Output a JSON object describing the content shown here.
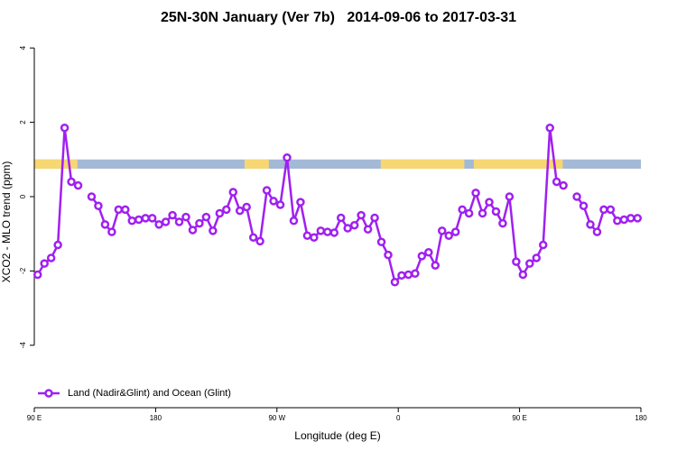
{
  "chart_data": {
    "type": "line",
    "title": "25N-30N January (Ver 7b)   2014-09-06 to 2017-03-31",
    "x_label": "Longitude (deg E)",
    "y_label": "XCO2 - MLO trend (ppm)",
    "x": [
      92.5,
      97.5,
      102.5,
      107.5,
      112.5,
      117.5,
      122.5,
      127.5,
      132.5,
      137.5,
      142.5,
      147.5,
      152.5,
      157.5,
      162.5,
      167.5,
      172.5,
      177.5,
      182.5,
      187.5,
      192.5,
      197.5,
      202.5,
      207.5,
      212.5,
      217.5,
      222.5,
      227.5,
      232.5,
      237.5,
      242.5,
      247.5,
      252.5,
      257.5,
      262.5,
      267.5,
      272.5,
      277.5,
      282.5,
      287.5,
      292.5,
      297.5,
      302.5,
      307.5,
      312.5,
      317.5,
      322.5,
      327.5,
      332.5,
      337.5,
      342.5,
      347.5,
      352.5,
      357.5,
      362.5,
      367.5,
      372.5,
      377.5,
      382.5,
      387.5,
      392.5,
      397.5,
      402.5,
      407.5,
      412.5,
      417.5,
      422.5,
      427.5,
      432.5,
      437.5,
      442.5,
      447.5,
      452.5,
      457.5,
      462.5,
      467.5,
      472.5,
      477.5,
      482.5,
      487.5,
      492.5,
      497.5,
      502.5,
      507.5,
      512.5,
      517.5,
      522.5,
      527.5,
      532.5,
      537.5
    ],
    "series": [
      {
        "name": "Land (Nadir&Glint) and Ocean (Glint)",
        "color": "#a020f0",
        "values": [
          -2.1,
          -1.8,
          -1.65,
          -1.3,
          1.85,
          0.4,
          0.3,
          null,
          0.0,
          -0.25,
          -0.75,
          -0.95,
          -0.35,
          -0.35,
          -0.65,
          -0.62,
          -0.58,
          -0.58,
          -0.75,
          -0.68,
          -0.5,
          -0.68,
          -0.55,
          -0.9,
          -0.72,
          -0.55,
          -0.92,
          -0.45,
          -0.35,
          0.12,
          -0.38,
          -0.28,
          -1.1,
          -1.2,
          0.17,
          -0.12,
          -0.22,
          1.05,
          -0.65,
          -0.15,
          -1.05,
          -1.1,
          -0.92,
          -0.95,
          -0.97,
          -0.57,
          -0.85,
          -0.77,
          -0.5,
          -0.88,
          -0.57,
          -1.22,
          -1.57,
          -2.3,
          -2.12,
          -2.1,
          -2.07,
          -1.6,
          -1.5,
          -1.85,
          -0.92,
          -1.05,
          -0.95,
          -0.35,
          -0.45,
          0.1,
          -0.45,
          -0.15,
          -0.4,
          -0.72,
          0.0,
          -1.75,
          -2.1,
          -1.8,
          -1.65,
          -1.3,
          1.85,
          0.4,
          0.3,
          null,
          0.0,
          -0.25,
          -0.75,
          -0.95,
          -0.35,
          -0.35,
          -0.65,
          -0.62,
          -0.58,
          -0.58
        ]
      }
    ],
    "xlim": [
      90,
      540
    ],
    "xticks": [
      {
        "value": 90,
        "label": "90 E"
      },
      180,
      {
        "value": 270,
        "label": "90 W"
      },
      {
        "value": 360,
        "label": "0"
      },
      {
        "value": 450,
        "label": "90 E"
      },
      {
        "value": 540,
        "label": "180"
      }
    ],
    "ylim": [
      -5.68,
      4.32
    ],
    "yticks": [
      -4,
      -2,
      0,
      2,
      4
    ],
    "legend": "bottom-left",
    "land_ocean_band": {
      "ylim": [
        0.75,
        1.0
      ],
      "land_color": "#f7d774",
      "ocean_color": "#a4b9d6",
      "land": [
        [
          90,
          122
        ],
        [
          246,
          264
        ],
        [
          347,
          409
        ],
        [
          416,
          482
        ]
      ]
    }
  }
}
